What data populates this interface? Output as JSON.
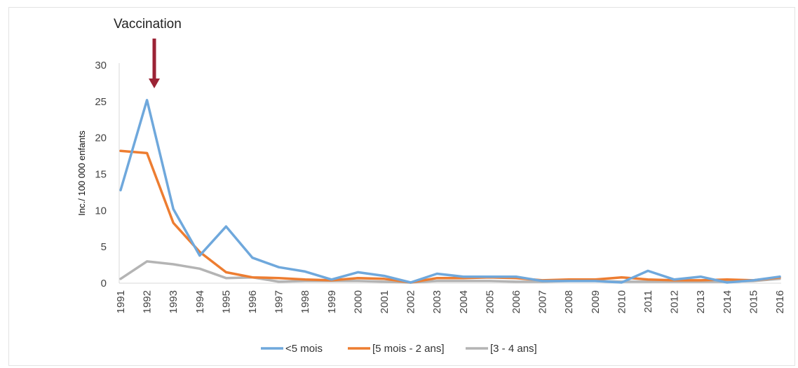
{
  "chart_data": {
    "type": "line",
    "title": "",
    "xlabel": "",
    "ylabel": "Inc./ 100 000 enfants",
    "ylim": [
      0,
      30
    ],
    "yticks": [
      "0",
      "5",
      "10",
      "15",
      "20",
      "25",
      "30"
    ],
    "grid": false,
    "legend_position": "bottom",
    "categories": [
      "1991",
      "1992",
      "1993",
      "1994",
      "1995",
      "1996",
      "1997",
      "1998",
      "1999",
      "2000",
      "2001",
      "2002",
      "2003",
      "2004",
      "2005",
      "2006",
      "2007",
      "2008",
      "2009",
      "2010",
      "2011",
      "2012",
      "2013",
      "2014",
      "2015",
      "2016"
    ],
    "series": [
      {
        "name": "<5 mois",
        "color": "#6fa8dc",
        "values": [
          12.8,
          25.2,
          10.2,
          3.8,
          7.8,
          3.5,
          2.2,
          1.6,
          0.5,
          1.5,
          1.0,
          0.1,
          1.3,
          0.9,
          0.9,
          0.9,
          0.3,
          0.3,
          0.3,
          0.1,
          1.7,
          0.5,
          0.9,
          0.1,
          0.4,
          0.9
        ]
      },
      {
        "name": "[5 mois - 2 ans]",
        "color": "#ed7d31",
        "values": [
          18.2,
          17.9,
          8.3,
          4.3,
          1.5,
          0.8,
          0.7,
          0.5,
          0.4,
          0.7,
          0.6,
          0.1,
          0.7,
          0.7,
          0.8,
          0.7,
          0.4,
          0.5,
          0.5,
          0.8,
          0.5,
          0.4,
          0.4,
          0.5,
          0.4,
          0.8
        ]
      },
      {
        "name": "[3 - 4 ans]",
        "color": "#b4b4b4",
        "values": [
          0.6,
          3.0,
          2.6,
          2.0,
          0.7,
          0.8,
          0.2,
          0.3,
          0.3,
          0.3,
          0.2,
          0.1,
          0.3,
          0.3,
          0.3,
          0.2,
          0.2,
          0.3,
          0.3,
          0.2,
          0.2,
          0.2,
          0.2,
          0.2,
          0.3,
          0.6
        ]
      }
    ],
    "annotations": [
      {
        "text": "Vaccination",
        "at": "1992",
        "arrow_color": "#9b2335"
      }
    ]
  }
}
